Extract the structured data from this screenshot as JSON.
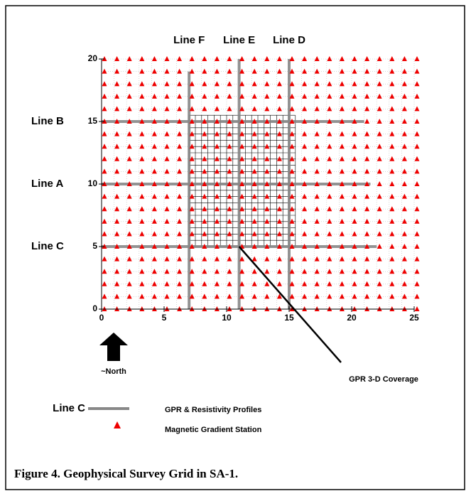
{
  "figure": {
    "xlim": [
      0,
      25
    ],
    "ylim": [
      0,
      20
    ],
    "xticks": [
      0,
      5,
      10,
      15,
      20,
      25
    ],
    "yticks": [
      0,
      5,
      10,
      15,
      20
    ],
    "station_spacing": 1,
    "profiles": [
      {
        "name": "Line F",
        "axis": "x",
        "position": 7,
        "range": [
          0,
          19
        ]
      },
      {
        "name": "Line E",
        "axis": "x",
        "position": 11,
        "range": [
          0,
          20
        ]
      },
      {
        "name": "Line D",
        "axis": "x",
        "position": 15,
        "range": [
          0,
          20
        ]
      },
      {
        "name": "Line B",
        "axis": "y",
        "position": 15,
        "range": [
          0,
          21
        ]
      },
      {
        "name": "Line A",
        "axis": "y",
        "position": 10,
        "range": [
          0,
          21.5
        ]
      },
      {
        "name": "Line C",
        "axis": "y",
        "position": 5,
        "range": [
          0,
          22
        ]
      }
    ],
    "gpr_grid": {
      "xrange": [
        7,
        15.5
      ],
      "yrange": [
        5,
        15.5
      ],
      "spacing": 0.5,
      "label": "GPR 3-D Coverage"
    },
    "north_label": "~North",
    "legend": {
      "line_sample": "Line C",
      "profiles_label": "GPR & Resistivity Profiles",
      "station_label": "Magnetic Gradient Station"
    },
    "caption": "Figure 4.  Geophysical Survey Grid in SA-1."
  }
}
